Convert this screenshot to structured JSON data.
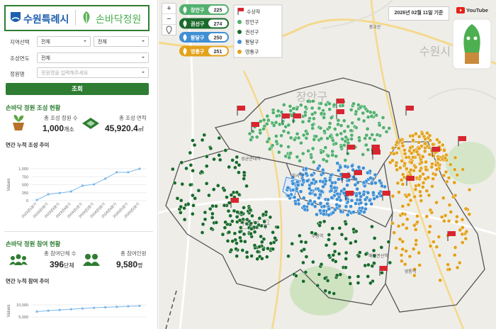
{
  "header": {
    "city": "수원특례시",
    "brand": "손바닥정원"
  },
  "filters": {
    "region_label": "지역선택",
    "region_values": [
      "전체",
      "전체"
    ],
    "year_label": "조성연도",
    "year_value": "전체",
    "name_label": "정원명",
    "name_placeholder": "정원명을 입력해주세요",
    "button": "조회"
  },
  "creation": {
    "title": "손바닥 정원 조성 현황",
    "stats": [
      {
        "label": "총 조성 정원 수",
        "value": "1,000",
        "unit": "개소"
      },
      {
        "label": "총 조성 면적",
        "value": "45,920.4",
        "unit": "㎡"
      }
    ],
    "chart": {
      "type": "line",
      "title": "연간 누적 조성 추이",
      "y_label": "Values",
      "categories": [
        "2023년1분기",
        "2023년2분기",
        "2023년3분기",
        "2023년4분기",
        "2024년1분기",
        "2024년2분기",
        "2024년3분기",
        "2024년4분기",
        "2025년1분기",
        "2025년2분기"
      ],
      "values": [
        20,
        200,
        240,
        290,
        470,
        510,
        690,
        890,
        890,
        1000
      ],
      "color": "#7ab8ea",
      "ylim": [
        0,
        1000
      ],
      "yticks": [
        0,
        250,
        500,
        750,
        {
          "value": 1000,
          "label": "1,000"
        }
      ]
    }
  },
  "participation": {
    "title": "손바닥 정원 참여 현황",
    "stats": [
      {
        "label": "총 참여단체 수",
        "value": "396",
        "unit": "단체"
      },
      {
        "label": "총 참여인원",
        "value": "9,580",
        "unit": "명"
      }
    ],
    "chart": {
      "type": "line",
      "title": "연간 누적 참여 추이",
      "y_label": "Values",
      "values": [
        7200,
        7600,
        7900,
        8200,
        8500,
        8800,
        9000,
        9200,
        9400,
        9580
      ],
      "color": "#7ab8ea",
      "ylim": [
        0,
        15000
      ],
      "yticks": [
        {
          "value": 5000,
          "label": "5,000"
        },
        {
          "value": 10000,
          "label": "10,000"
        }
      ]
    }
  },
  "map": {
    "districts": [
      {
        "name": "장안구",
        "count": 225,
        "color": "#52b06f"
      },
      {
        "name": "권선구",
        "count": 274,
        "color": "#1a6a2c"
      },
      {
        "name": "팔달구",
        "count": 250,
        "color": "#3f8fd4"
      },
      {
        "name": "영통구",
        "count": 251,
        "color": "#e3a21c"
      }
    ],
    "legend_title": "수상작",
    "date": "2026년 02월 11일 기준",
    "youtube": "YouTube",
    "zoom_in": "+",
    "zoom_out": "−",
    "places": [
      "장안구",
      "권선구",
      "성균관대역",
      "화서역",
      "수원역",
      "매탄권선역",
      "영통역",
      "광교산",
      "수원시"
    ]
  }
}
